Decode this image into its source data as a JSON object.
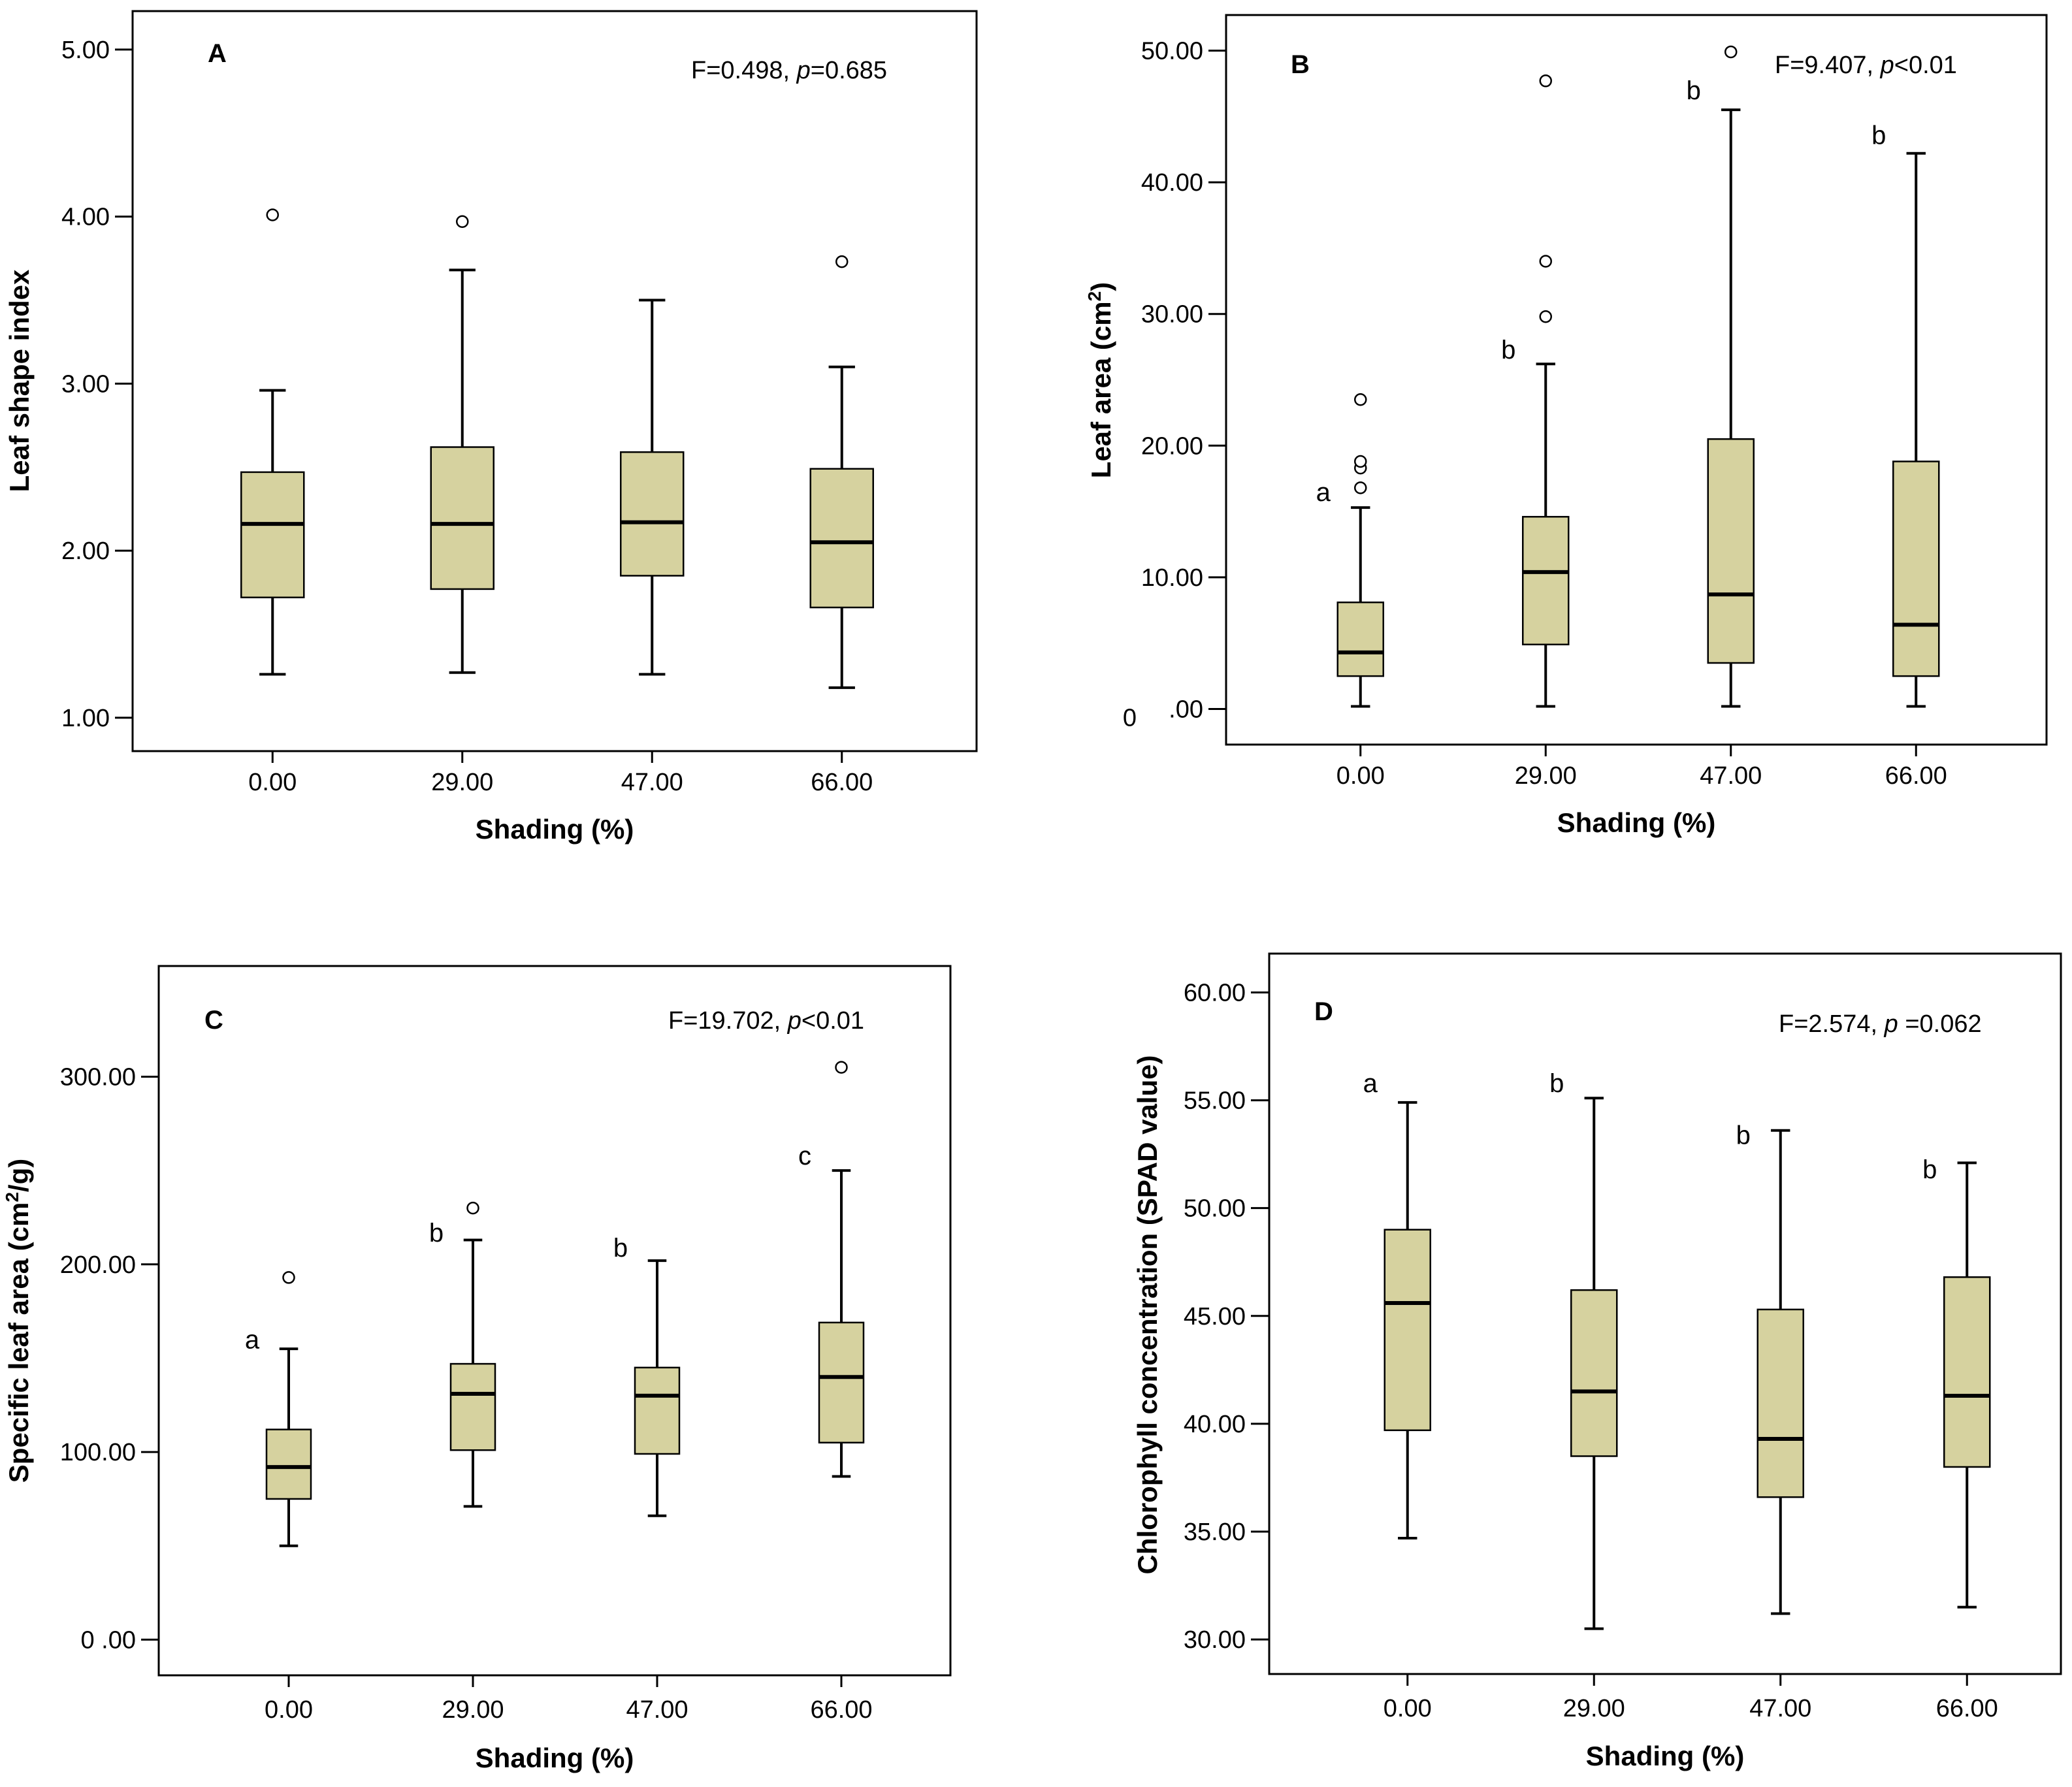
{
  "figure_colors": {
    "box_fill": "#d6d29f",
    "stroke": "#000000",
    "background": "#ffffff"
  },
  "chart_data": [
    {
      "type": "box",
      "panel_label": "A",
      "stat_prefix": "F=0.498, ",
      "stat_p": "p",
      "stat_suffix": "=0.685",
      "xlabel": "Shading (%)",
      "ylabel": "Leaf shape index",
      "categories": [
        "0.00",
        "29.00",
        "47.00",
        "66.00"
      ],
      "yticks": [
        1.0,
        2.0,
        3.0,
        4.0,
        5.0
      ],
      "ytick_labels": [
        "1.00",
        "2.00",
        "3.00",
        "4.00",
        "5.00"
      ],
      "ylim": [
        0.8,
        5.23
      ],
      "boxes": [
        {
          "min": 1.26,
          "q1": 1.72,
          "median": 2.16,
          "q3": 2.47,
          "max": 2.96,
          "outliers": [
            4.01
          ],
          "letter": ""
        },
        {
          "min": 1.27,
          "q1": 1.77,
          "median": 2.16,
          "q3": 2.62,
          "max": 3.68,
          "outliers": [
            3.97
          ],
          "letter": ""
        },
        {
          "min": 1.26,
          "q1": 1.85,
          "median": 2.17,
          "q3": 2.59,
          "max": 3.5,
          "outliers": [],
          "letter": ""
        },
        {
          "min": 1.18,
          "q1": 1.66,
          "median": 2.05,
          "q3": 2.49,
          "max": 3.1,
          "outliers": [
            3.73
          ],
          "letter": ""
        }
      ]
    },
    {
      "type": "box",
      "panel_label": "B",
      "stat_prefix": "F=9.407, ",
      "stat_p": "p",
      "stat_suffix": "<0.01",
      "xlabel": "Shading (%)",
      "ylabel": "Leaf area (cm",
      "ylabel_sup": "2",
      "ylabel_end": ")",
      "categories": [
        "0.00",
        "29.00",
        "47.00",
        "66.00"
      ],
      "yticks": [
        0,
        10,
        20,
        30,
        40,
        50
      ],
      "ytick_labels": [
        ".00",
        "10.00",
        "20.00",
        "30.00",
        "40.00",
        "50.00"
      ],
      "zero_mark": "0",
      "ylim": [
        -2.7,
        52.7
      ],
      "boxes": [
        {
          "min": 0.2,
          "q1": 2.5,
          "median": 4.3,
          "q3": 8.1,
          "max": 15.3,
          "outliers": [
            16.8,
            18.3,
            18.8,
            23.5
          ],
          "letter": "a",
          "letter_value": 16.5
        },
        {
          "min": 0.2,
          "q1": 4.9,
          "median": 10.4,
          "q3": 14.6,
          "max": 26.2,
          "outliers": [
            29.8,
            34.0,
            47.7
          ],
          "letter": "b",
          "letter_value": 27.3
        },
        {
          "min": 0.2,
          "q1": 3.5,
          "median": 8.7,
          "q3": 20.5,
          "max": 45.5,
          "outliers": [
            49.9
          ],
          "letter": "b",
          "letter_value": 47.0
        },
        {
          "min": 0.2,
          "q1": 2.5,
          "median": 6.4,
          "q3": 18.8,
          "max": 42.2,
          "outliers": [],
          "letter": "b",
          "letter_value": 43.6
        }
      ]
    },
    {
      "type": "box",
      "panel_label": "C",
      "stat_prefix": "F=19.702, ",
      "stat_p": "p",
      "stat_suffix": "<0.01",
      "xlabel": "Shading (%)",
      "ylabel": "Specific leaf area (cm",
      "ylabel_sup": "2",
      "ylabel_end": "/g)",
      "categories": [
        "0.00",
        "29.00",
        "47.00",
        "66.00"
      ],
      "yticks": [
        0,
        100,
        200,
        300
      ],
      "ytick_labels": [
        "0 .00",
        "100.00",
        "200.00",
        "300.00"
      ],
      "ylim": [
        -19,
        359
      ],
      "boxes": [
        {
          "min": 50,
          "q1": 75,
          "median": 92,
          "q3": 112,
          "max": 155,
          "outliers": [
            193
          ],
          "letter": "a",
          "letter_value": 160
        },
        {
          "min": 71,
          "q1": 101,
          "median": 131,
          "q3": 147,
          "max": 213,
          "outliers": [
            230
          ],
          "letter": "b",
          "letter_value": 217
        },
        {
          "min": 66,
          "q1": 99,
          "median": 130,
          "q3": 145,
          "max": 202,
          "outliers": [],
          "letter": "b",
          "letter_value": 209
        },
        {
          "min": 87,
          "q1": 105,
          "median": 140,
          "q3": 169,
          "max": 250,
          "outliers": [
            305
          ],
          "letter": "c",
          "letter_value": 258
        }
      ]
    },
    {
      "type": "box",
      "panel_label": "D",
      "stat_prefix": "F=2.574, ",
      "stat_p": "p",
      "stat_suffix": " =0.062",
      "xlabel": "Shading (%)",
      "ylabel": "Chlorophyll concentration (SPAD value)",
      "categories": [
        "0.00",
        "29.00",
        "47.00",
        "66.00"
      ],
      "yticks": [
        30,
        35,
        40,
        45,
        50,
        55,
        60
      ],
      "ytick_labels": [
        "30.00",
        "35.00",
        "40.00",
        "45.00",
        "50.00",
        "55.00",
        "60.00"
      ],
      "ylim": [
        28.4,
        61.8
      ],
      "boxes": [
        {
          "min": 34.7,
          "q1": 39.7,
          "median": 45.6,
          "q3": 49.0,
          "max": 54.9,
          "outliers": [],
          "letter": "a",
          "letter_value": 55.8
        },
        {
          "min": 30.5,
          "q1": 38.5,
          "median": 41.5,
          "q3": 46.2,
          "max": 55.1,
          "outliers": [],
          "letter": "b",
          "letter_value": 55.8
        },
        {
          "min": 31.2,
          "q1": 36.6,
          "median": 39.3,
          "q3": 45.3,
          "max": 53.6,
          "outliers": [],
          "letter": "b",
          "letter_value": 53.4
        },
        {
          "min": 31.5,
          "q1": 38.0,
          "median": 41.3,
          "q3": 46.8,
          "max": 52.1,
          "outliers": [],
          "letter": "b",
          "letter_value": 51.8
        }
      ]
    }
  ]
}
